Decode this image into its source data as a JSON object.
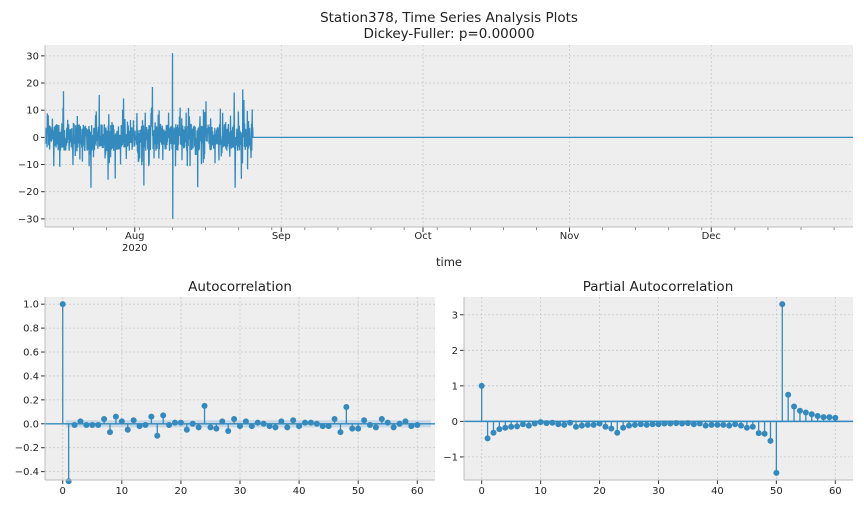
{
  "colors": {
    "line": "#348ABD",
    "panel": "#EEEEEE",
    "grid": "#C9C9C9",
    "band": "#A9C6E0"
  },
  "top": {
    "title_line1": "Station378, Time Series Analysis Plots",
    "title_line2": "Dickey-Fuller: p=0.00000",
    "xlabel": "time",
    "x_tick_labels": [
      "Aug\n2020",
      "Sep",
      "Oct",
      "Nov",
      "Dec"
    ],
    "y_tick_labels": [
      "30",
      "20",
      "10",
      "0",
      "−10",
      "−20",
      "−30"
    ]
  },
  "acf": {
    "title": "Autocorrelation",
    "x_tick_labels": [
      "0",
      "10",
      "20",
      "30",
      "40",
      "50",
      "60"
    ],
    "y_tick_labels": [
      "1.0",
      "0.8",
      "0.6",
      "0.4",
      "0.2",
      "0.0",
      "−0.2",
      "−0.4"
    ]
  },
  "pacf": {
    "title": "Partial Autocorrelation",
    "x_tick_labels": [
      "0",
      "10",
      "20",
      "30",
      "40",
      "50",
      "60"
    ],
    "y_tick_labels": [
      "3",
      "2",
      "1",
      "0",
      "−1"
    ]
  },
  "chart_data": [
    {
      "type": "line",
      "title": "Station378, Time Series Analysis Plots\nDickey-Fuller: p=0.00000",
      "xlabel": "time",
      "ylabel": "",
      "x_range": [
        "2020-07-13",
        "2020-12-31"
      ],
      "ylim": [
        -33,
        34
      ],
      "active_period": [
        "2020-07-13",
        "2020-08-26"
      ],
      "flat_period": [
        "2020-08-26",
        "2020-12-31"
      ],
      "flat_value": 0,
      "approx_extremes": {
        "max": 31,
        "min": -30
      },
      "grid": true
    },
    {
      "type": "bar",
      "title": "Autocorrelation",
      "xlabel": "",
      "ylabel": "",
      "xlim": [
        -3,
        63
      ],
      "ylim": [
        -0.47,
        1.06
      ],
      "confidence_band": 0.03,
      "lags": [
        0,
        1,
        2,
        3,
        4,
        5,
        6,
        7,
        8,
        9,
        10,
        11,
        12,
        13,
        14,
        15,
        16,
        17,
        18,
        19,
        20,
        21,
        22,
        23,
        24,
        25,
        26,
        27,
        28,
        29,
        30,
        31,
        32,
        33,
        34,
        35,
        36,
        37,
        38,
        39,
        40,
        41,
        42,
        43,
        44,
        45,
        46,
        47,
        48,
        49,
        50,
        51,
        52,
        53,
        54,
        55,
        56,
        57,
        58,
        59,
        60
      ],
      "values": [
        1.0,
        -0.48,
        -0.01,
        0.02,
        -0.01,
        -0.01,
        -0.01,
        0.04,
        -0.07,
        0.06,
        0.02,
        -0.05,
        0.03,
        -0.02,
        -0.01,
        0.06,
        -0.1,
        0.07,
        -0.01,
        0.01,
        0.01,
        -0.05,
        0.0,
        -0.03,
        0.15,
        -0.03,
        -0.04,
        0.02,
        -0.06,
        0.04,
        -0.02,
        0.02,
        -0.02,
        0.01,
        0.0,
        -0.02,
        -0.03,
        0.02,
        -0.03,
        0.03,
        -0.02,
        0.01,
        0.01,
        0.0,
        -0.02,
        -0.02,
        0.04,
        -0.07,
        0.14,
        -0.04,
        -0.04,
        0.03,
        -0.01,
        -0.03,
        0.04,
        0.01,
        -0.03,
        0.0,
        0.02,
        -0.02,
        -0.01
      ],
      "grid": true
    },
    {
      "type": "bar",
      "title": "Partial Autocorrelation",
      "xlabel": "",
      "ylabel": "",
      "xlim": [
        -3,
        63
      ],
      "ylim": [
        -1.65,
        3.5
      ],
      "confidence_band": 0.03,
      "lags": [
        0,
        1,
        2,
        3,
        4,
        5,
        6,
        7,
        8,
        9,
        10,
        11,
        12,
        13,
        14,
        15,
        16,
        17,
        18,
        19,
        20,
        21,
        22,
        23,
        24,
        25,
        26,
        27,
        28,
        29,
        30,
        31,
        32,
        33,
        34,
        35,
        36,
        37,
        38,
        39,
        40,
        41,
        42,
        43,
        44,
        45,
        46,
        47,
        48,
        49,
        50,
        51,
        52,
        53,
        54,
        55,
        56,
        57,
        58,
        59,
        60
      ],
      "values": [
        1.0,
        -0.48,
        -0.32,
        -0.22,
        -0.18,
        -0.15,
        -0.14,
        -0.08,
        -0.12,
        -0.06,
        -0.02,
        -0.05,
        -0.04,
        -0.08,
        -0.1,
        -0.04,
        -0.15,
        -0.12,
        -0.1,
        -0.1,
        -0.06,
        -0.15,
        -0.2,
        -0.32,
        -0.18,
        -0.12,
        -0.1,
        -0.08,
        -0.1,
        -0.08,
        -0.08,
        -0.06,
        -0.06,
        -0.05,
        -0.06,
        -0.05,
        -0.08,
        -0.06,
        -0.12,
        -0.1,
        -0.1,
        -0.1,
        -0.12,
        -0.08,
        -0.12,
        -0.18,
        -0.15,
        -0.33,
        -0.35,
        -0.55,
        -1.45,
        3.3,
        0.75,
        0.42,
        0.3,
        0.25,
        0.2,
        0.15,
        0.12,
        0.12,
        0.1
      ],
      "grid": true
    }
  ]
}
